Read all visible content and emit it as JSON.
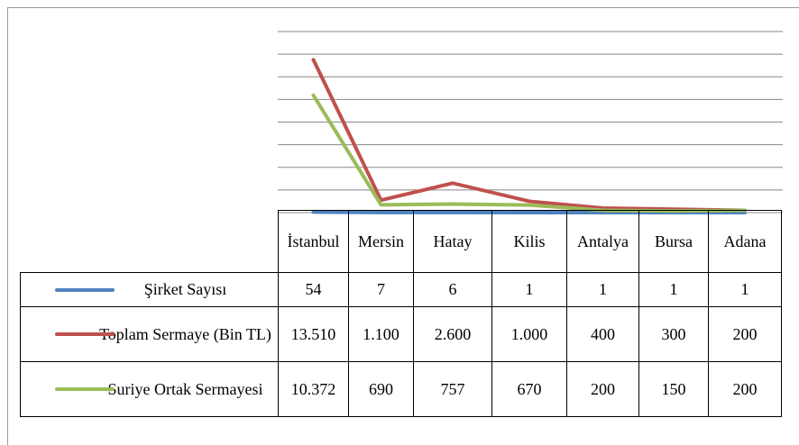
{
  "chart_data": {
    "type": "line",
    "categories": [
      "İstanbul",
      "Mersin",
      "Hatay",
      "Kilis",
      "Antalya",
      "Bursa",
      "Adana"
    ],
    "series": [
      {
        "name": "Şirket Sayısı",
        "color": "#4f81bd",
        "values": [
          54,
          7,
          6,
          1,
          1,
          1,
          1
        ]
      },
      {
        "name": "Toplam Sermaye (Bin TL)",
        "color": "#c0504d",
        "values": [
          13510,
          1100,
          2600,
          1000,
          400,
          300,
          200
        ],
        "value_labels": [
          "13.510",
          "1.100",
          "2.600",
          "1.000",
          "400",
          "300",
          "200"
        ]
      },
      {
        "name": "Suriye Ortak Sermayesi",
        "color": "#9bbb59",
        "values": [
          10372,
          690,
          757,
          670,
          200,
          150,
          200
        ],
        "value_labels": [
          "10.372",
          "690",
          "757",
          "670",
          "200",
          "150",
          "200"
        ]
      }
    ],
    "ylim": [
      0,
      16000
    ],
    "yticks": [
      0,
      2000,
      4000,
      6000,
      8000,
      10000,
      12000,
      14000,
      16000
    ],
    "grid": true
  }
}
